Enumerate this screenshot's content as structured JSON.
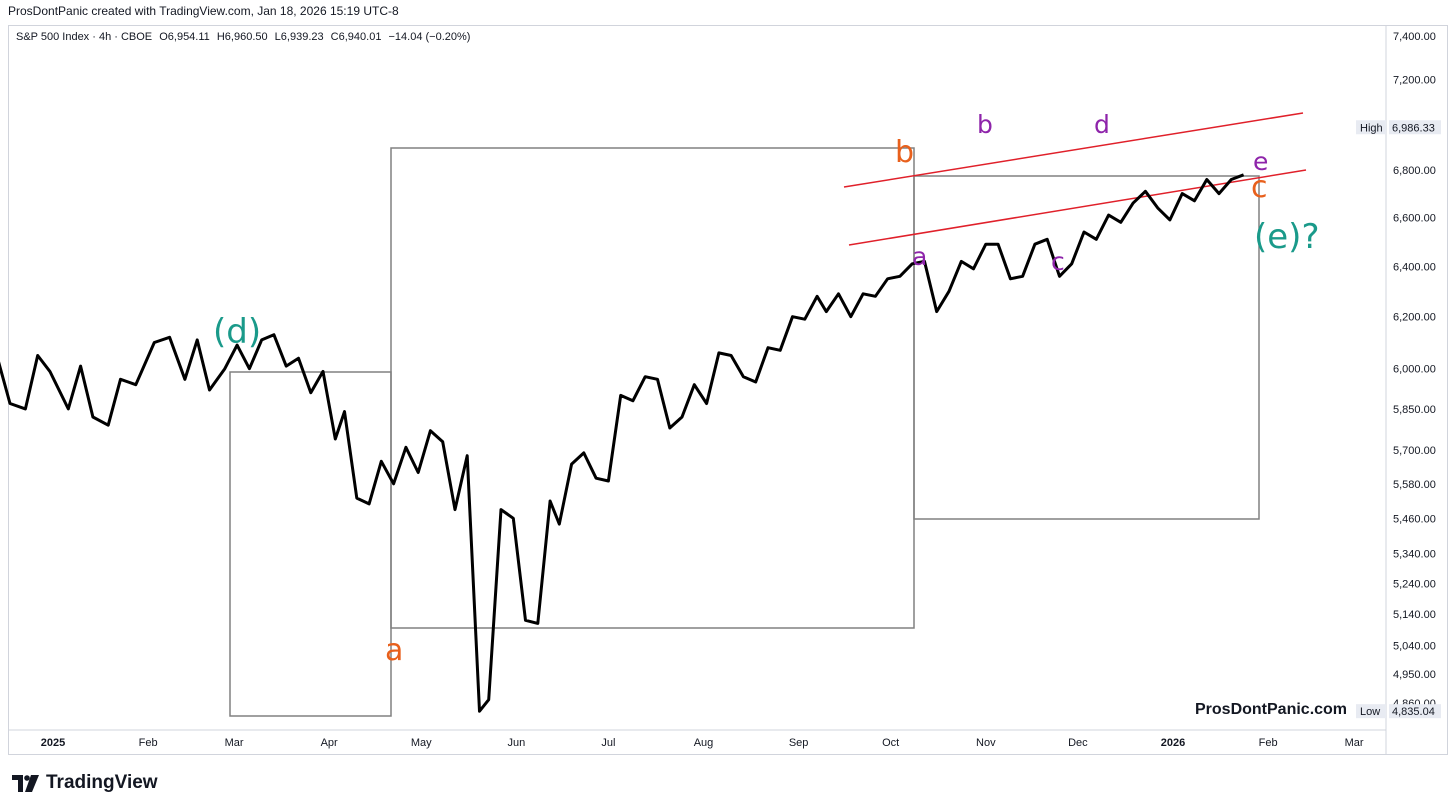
{
  "header": {
    "text": "ProsDontPanic created with TradingView.com, Jan 18, 2026 15:19 UTC-8"
  },
  "legend": {
    "symbol": "S&P 500 Index · 4h · CBOE",
    "open": "O6,954.11",
    "high": "H6,960.50",
    "low": "L6,939.23",
    "close": "C6,940.01",
    "change": "−14.04 (−0.20%)"
  },
  "watermark": "ProsDontPanic.com",
  "logo": {
    "text": "TradingView"
  },
  "colors": {
    "price_line": "#000000",
    "channel": "#e0202a",
    "box": "#808080",
    "orange_label": "#e8601c",
    "purple_label": "#8e24aa",
    "teal_label": "#1a9a8a"
  },
  "chart_data": {
    "type": "line",
    "title": "S&P 500 Index · 4h · CBOE",
    "y_scale": "log",
    "ylim": [
      4800,
      7400
    ],
    "y_ticks": [
      "7,400.00",
      "7,200.00",
      "6,800.00",
      "6,600.00",
      "6,400.00",
      "6,200.00",
      "6,000.00",
      "5,850.00",
      "5,700.00",
      "5,580.00",
      "5,460.00",
      "5,340.00",
      "5,240.00",
      "5,140.00",
      "5,040.00",
      "4,950.00",
      "4,860.00"
    ],
    "y_tick_values": [
      7400,
      7200,
      6800,
      6600,
      6400,
      6200,
      6000,
      5850,
      5700,
      5580,
      5460,
      5340,
      5240,
      5140,
      5040,
      4950,
      4860
    ],
    "x_ticks": [
      {
        "label": "2025",
        "date": "2025-01-01",
        "bold": true
      },
      {
        "label": "Feb",
        "date": "2025-02-01"
      },
      {
        "label": "Mar",
        "date": "2025-03-01"
      },
      {
        "label": "Apr",
        "date": "2025-04-01"
      },
      {
        "label": "May",
        "date": "2025-05-01"
      },
      {
        "label": "Jun",
        "date": "2025-06-01"
      },
      {
        "label": "Jul",
        "date": "2025-07-01"
      },
      {
        "label": "Aug",
        "date": "2025-08-01"
      },
      {
        "label": "Sep",
        "date": "2025-09-01"
      },
      {
        "label": "Oct",
        "date": "2025-10-01"
      },
      {
        "label": "Nov",
        "date": "2025-11-01"
      },
      {
        "label": "Dec",
        "date": "2025-12-01"
      },
      {
        "label": "2026",
        "date": "2026-01-01",
        "bold": true
      },
      {
        "label": "Feb",
        "date": "2026-02-01"
      },
      {
        "label": "Mar",
        "date": "2026-03-01"
      }
    ],
    "high_marker": {
      "label": "High",
      "value": "6,986.33",
      "y": 6986.33
    },
    "low_marker": {
      "label": "Low",
      "value": "4,835.04",
      "y": 4835.04
    },
    "series": [
      {
        "points": [
          [
            "2024-12-13",
            6080
          ],
          [
            "2024-12-18",
            5870
          ],
          [
            "2024-12-23",
            5850
          ],
          [
            "2024-12-27",
            6050
          ],
          [
            "2024-12-31",
            5990
          ],
          [
            "2025-01-06",
            5850
          ],
          [
            "2025-01-10",
            6010
          ],
          [
            "2025-01-14",
            5820
          ],
          [
            "2025-01-19",
            5790
          ],
          [
            "2025-01-23",
            5960
          ],
          [
            "2025-01-28",
            5940
          ],
          [
            "2025-02-03",
            6100
          ],
          [
            "2025-02-08",
            6120
          ],
          [
            "2025-02-13",
            5960
          ],
          [
            "2025-02-17",
            6110
          ],
          [
            "2025-02-21",
            5920
          ],
          [
            "2025-02-26",
            6000
          ],
          [
            "2025-03-02",
            6090
          ],
          [
            "2025-03-06",
            6000
          ],
          [
            "2025-03-10",
            6110
          ],
          [
            "2025-03-14",
            6130
          ],
          [
            "2025-03-18",
            6010
          ],
          [
            "2025-03-22",
            6040
          ],
          [
            "2025-03-26",
            5910
          ],
          [
            "2025-03-30",
            5990
          ],
          [
            "2025-04-03",
            5740
          ],
          [
            "2025-04-06",
            5840
          ],
          [
            "2025-04-10",
            5530
          ],
          [
            "2025-04-14",
            5510
          ],
          [
            "2025-04-18",
            5660
          ],
          [
            "2025-04-22",
            5580
          ],
          [
            "2025-04-26",
            5710
          ],
          [
            "2025-04-30",
            5620
          ],
          [
            "2025-05-04",
            5770
          ],
          [
            "2025-05-08",
            5730
          ],
          [
            "2025-05-12",
            5490
          ],
          [
            "2025-05-16",
            5680
          ],
          [
            "2025-05-20",
            4835
          ],
          [
            "2025-05-23",
            4870
          ],
          [
            "2025-05-27",
            5490
          ],
          [
            "2025-05-31",
            5460
          ],
          [
            "2025-06-04",
            5120
          ],
          [
            "2025-06-08",
            5110
          ],
          [
            "2025-06-12",
            5520
          ],
          [
            "2025-06-15",
            5440
          ],
          [
            "2025-06-19",
            5650
          ],
          [
            "2025-06-23",
            5690
          ],
          [
            "2025-06-27",
            5600
          ],
          [
            "2025-07-01",
            5590
          ],
          [
            "2025-07-05",
            5900
          ],
          [
            "2025-07-09",
            5880
          ],
          [
            "2025-07-13",
            5970
          ],
          [
            "2025-07-17",
            5960
          ],
          [
            "2025-07-21",
            5780
          ],
          [
            "2025-07-25",
            5820
          ],
          [
            "2025-07-29",
            5940
          ],
          [
            "2025-08-02",
            5870
          ],
          [
            "2025-08-06",
            6060
          ],
          [
            "2025-08-10",
            6050
          ],
          [
            "2025-08-14",
            5970
          ],
          [
            "2025-08-18",
            5950
          ],
          [
            "2025-08-22",
            6080
          ],
          [
            "2025-08-26",
            6070
          ],
          [
            "2025-08-30",
            6200
          ],
          [
            "2025-09-03",
            6190
          ],
          [
            "2025-09-07",
            6280
          ],
          [
            "2025-09-10",
            6220
          ],
          [
            "2025-09-14",
            6290
          ],
          [
            "2025-09-18",
            6200
          ],
          [
            "2025-09-22",
            6290
          ],
          [
            "2025-09-26",
            6280
          ],
          [
            "2025-09-30",
            6350
          ],
          [
            "2025-10-04",
            6360
          ],
          [
            "2025-10-08",
            6410
          ],
          [
            "2025-10-12",
            6420
          ],
          [
            "2025-10-16",
            6220
          ],
          [
            "2025-10-20",
            6300
          ],
          [
            "2025-10-24",
            6420
          ],
          [
            "2025-10-28",
            6390
          ],
          [
            "2025-11-01",
            6490
          ],
          [
            "2025-11-05",
            6490
          ],
          [
            "2025-11-09",
            6350
          ],
          [
            "2025-11-13",
            6360
          ],
          [
            "2025-11-17",
            6490
          ],
          [
            "2025-11-21",
            6510
          ],
          [
            "2025-11-25",
            6360
          ],
          [
            "2025-11-29",
            6410
          ],
          [
            "2025-12-03",
            6540
          ],
          [
            "2025-12-07",
            6510
          ],
          [
            "2025-12-11",
            6610
          ],
          [
            "2025-12-15",
            6580
          ],
          [
            "2025-12-19",
            6660
          ],
          [
            "2025-12-23",
            6710
          ],
          [
            "2025-12-27",
            6640
          ],
          [
            "2025-12-31",
            6590
          ],
          [
            "2026-01-04",
            6700
          ],
          [
            "2026-01-08",
            6670
          ],
          [
            "2026-01-12",
            6760
          ],
          [
            "2026-01-16",
            6700
          ],
          [
            "2026-01-20",
            6760
          ],
          [
            "2026-01-24",
            6780
          ]
        ]
      }
    ]
  }
}
